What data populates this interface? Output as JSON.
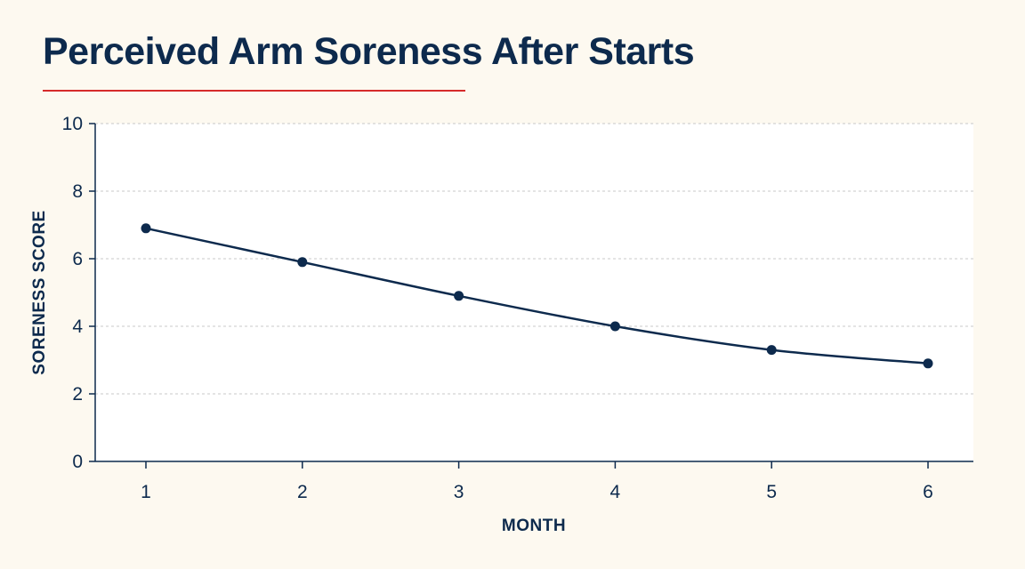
{
  "chart_data": {
    "type": "line",
    "title": "Perceived Arm Soreness After Starts",
    "xlabel": "MONTH",
    "ylabel": "SORENESS SCORE",
    "x": [
      1,
      2,
      3,
      4,
      5,
      6
    ],
    "series": [
      {
        "values": [
          6.9,
          5.9,
          4.9,
          4.0,
          3.3,
          2.9
        ]
      }
    ],
    "ylim": [
      0,
      10
    ],
    "yticks": [
      0,
      2,
      4,
      6,
      8,
      10
    ],
    "grid": true,
    "colors": {
      "line": "#0d2a4d",
      "title": "#0d2a4d",
      "accent_rule": "#d62b2b",
      "grid": "#c8c8c8",
      "plot_background": "#ffffff",
      "page_background": "#fdf9f0"
    }
  }
}
